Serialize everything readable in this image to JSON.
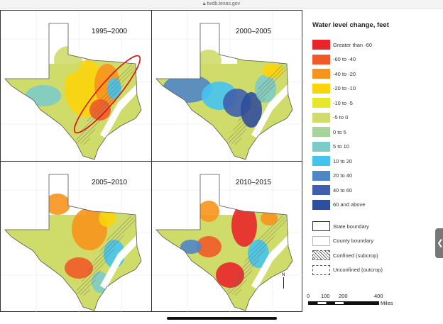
{
  "browser": {
    "url": "twdb.texas.gov",
    "lock_icon": "lock-icon"
  },
  "panels": [
    {
      "label": "1995–2000"
    },
    {
      "label": "2000–2005"
    },
    {
      "label": "2005–2010"
    },
    {
      "label": "2010–2015"
    }
  ],
  "legend": {
    "title": "Water level change, feet",
    "classes": [
      {
        "label": "Greater than -60",
        "color": "#e8262a"
      },
      {
        "label": "-60 to -40",
        "color": "#f05a28"
      },
      {
        "label": "-40 to -20",
        "color": "#f7941d"
      },
      {
        "label": "-20 to -10",
        "color": "#fbd40b"
      },
      {
        "label": "-10 to -5",
        "color": "#e6e62a"
      },
      {
        "label": "-5 to 0",
        "color": "#cfdc6a"
      },
      {
        "label": "0 to 5",
        "color": "#a6d49a"
      },
      {
        "label": "5 to 10",
        "color": "#7ccbc9"
      },
      {
        "label": "10 to 20",
        "color": "#45c3ef"
      },
      {
        "label": "20 to 40",
        "color": "#4f86c6"
      },
      {
        "label": "40 to 60",
        "color": "#3f5fae"
      },
      {
        "label": "60 and above",
        "color": "#2f4e9e"
      }
    ],
    "symbols": [
      {
        "label": "State boundary"
      },
      {
        "label": "County boundary"
      },
      {
        "label": "Confined (subcrop)"
      },
      {
        "label": "Unconfined (outcrop)"
      }
    ]
  },
  "scale": {
    "ticks": [
      "0",
      "100",
      "200",
      "400"
    ],
    "unit": "Miles"
  },
  "north_arrow": "N"
}
